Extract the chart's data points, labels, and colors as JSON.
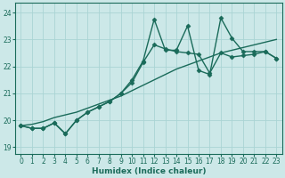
{
  "xlabel": "Humidex (Indice chaleur)",
  "ylabel": "",
  "bg_color": "#cce8e8",
  "line_color": "#1a6b5a",
  "grid_color": "#aad4d4",
  "xlim": [
    -0.5,
    23.5
  ],
  "ylim": [
    18.75,
    24.35
  ],
  "yticks": [
    19,
    20,
    21,
    22,
    23,
    24
  ],
  "xticks": [
    0,
    1,
    2,
    3,
    4,
    5,
    6,
    7,
    8,
    9,
    10,
    11,
    12,
    13,
    14,
    15,
    16,
    17,
    18,
    19,
    20,
    21,
    22,
    23
  ],
  "series": [
    {
      "y": [
        19.8,
        19.7,
        19.7,
        19.9,
        19.5,
        20.0,
        20.3,
        20.5,
        20.7,
        21.0,
        21.5,
        22.2,
        23.75,
        22.6,
        22.6,
        23.5,
        21.85,
        21.7,
        23.8,
        23.05,
        22.55,
        22.55,
        22.55,
        22.3
      ],
      "marker": true,
      "linewidth": 1.0
    },
    {
      "y": [
        19.8,
        19.7,
        19.7,
        19.9,
        19.5,
        20.0,
        20.3,
        20.5,
        20.7,
        21.0,
        21.4,
        22.15,
        22.8,
        22.65,
        22.55,
        22.5,
        22.45,
        21.75,
        22.5,
        22.35,
        22.4,
        22.45,
        22.55,
        22.3
      ],
      "marker": true,
      "linewidth": 1.0
    },
    {
      "y": [
        19.8,
        19.85,
        19.95,
        20.1,
        20.2,
        20.3,
        20.45,
        20.6,
        20.75,
        20.9,
        21.1,
        21.3,
        21.5,
        21.7,
        21.9,
        22.05,
        22.2,
        22.35,
        22.5,
        22.6,
        22.7,
        22.8,
        22.9,
        23.0
      ],
      "marker": false,
      "linewidth": 1.0
    }
  ],
  "marker_style": "D",
  "markersize": 2.5,
  "tick_fontsize": 5.5,
  "xlabel_fontsize": 6.5
}
